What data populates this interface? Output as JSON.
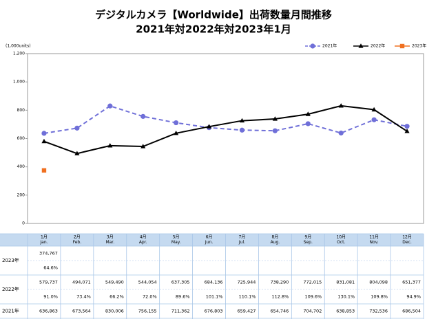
{
  "chart_data": {
    "type": "line",
    "title": "デジタルカメラ【Worldwide】出荷数量月間推移",
    "subtitle": "2021年対2022年対2023年1月",
    "y_label": "(1,000units)",
    "ylim": [
      0,
      1200
    ],
    "yticks": [
      0,
      200,
      400,
      600,
      800,
      {
        "value": 1000,
        "label": "1,000"
      },
      {
        "value": 1200,
        "label": "1,200"
      }
    ],
    "grid": false,
    "legend": "top-right",
    "series": [
      {
        "name": "2021年",
        "color": "#6f6fd8",
        "marker": "circle",
        "dashed": true,
        "values": [
          636.863,
          673.564,
          830.006,
          756.155,
          711.362,
          676.803,
          659.427,
          654.746,
          704.702,
          638.853,
          732.536,
          686.504
        ]
      },
      {
        "name": "2022年",
        "color": "#000000",
        "marker": "triangle",
        "dashed": false,
        "values": [
          579.737,
          494.071,
          549.49,
          544.054,
          637.305,
          684.136,
          725.944,
          738.29,
          772.015,
          831.081,
          804.098,
          651.377
        ]
      },
      {
        "name": "2023年",
        "color": "#f07020",
        "marker": "square",
        "dashed": false,
        "values": [
          374.767,
          null,
          null,
          null,
          null,
          null,
          null,
          null,
          null,
          null,
          null,
          null
        ]
      }
    ]
  },
  "table": {
    "columns": [
      {
        "ja": "1月",
        "en": "Jan."
      },
      {
        "ja": "2月",
        "en": "Feb."
      },
      {
        "ja": "3月",
        "en": "Mar."
      },
      {
        "ja": "4月",
        "en": "Apr."
      },
      {
        "ja": "5月",
        "en": "May."
      },
      {
        "ja": "6月",
        "en": "Jun."
      },
      {
        "ja": "7月",
        "en": "Jul."
      },
      {
        "ja": "8月",
        "en": "Aug."
      },
      {
        "ja": "9月",
        "en": "Sep."
      },
      {
        "ja": "10月",
        "en": "Oct."
      },
      {
        "ja": "11月",
        "en": "Nov."
      },
      {
        "ja": "12月",
        "en": "Dec."
      }
    ],
    "rows": [
      {
        "label": "2023年",
        "values": [
          "374,767"
        ],
        "ratios": [
          "64.6%"
        ]
      },
      {
        "label": "2022年",
        "values": [
          "579,737",
          "494,071",
          "549,490",
          "544,054",
          "637,305",
          "684,136",
          "725,944",
          "738,290",
          "772,015",
          "831,081",
          "804,098",
          "651,377"
        ],
        "ratios": [
          "91.0%",
          "73.4%",
          "66.2%",
          "72.0%",
          "89.6%",
          "101.1%",
          "110.1%",
          "112.8%",
          "109.6%",
          "130.1%",
          "109.8%",
          "94.9%"
        ]
      },
      {
        "label": "2021年",
        "values": [
          "636,863",
          "673,564",
          "830,006",
          "756,155",
          "711,362",
          "676,803",
          "659,427",
          "654,746",
          "704,702",
          "638,853",
          "732,536",
          "686,504"
        ]
      }
    ]
  }
}
